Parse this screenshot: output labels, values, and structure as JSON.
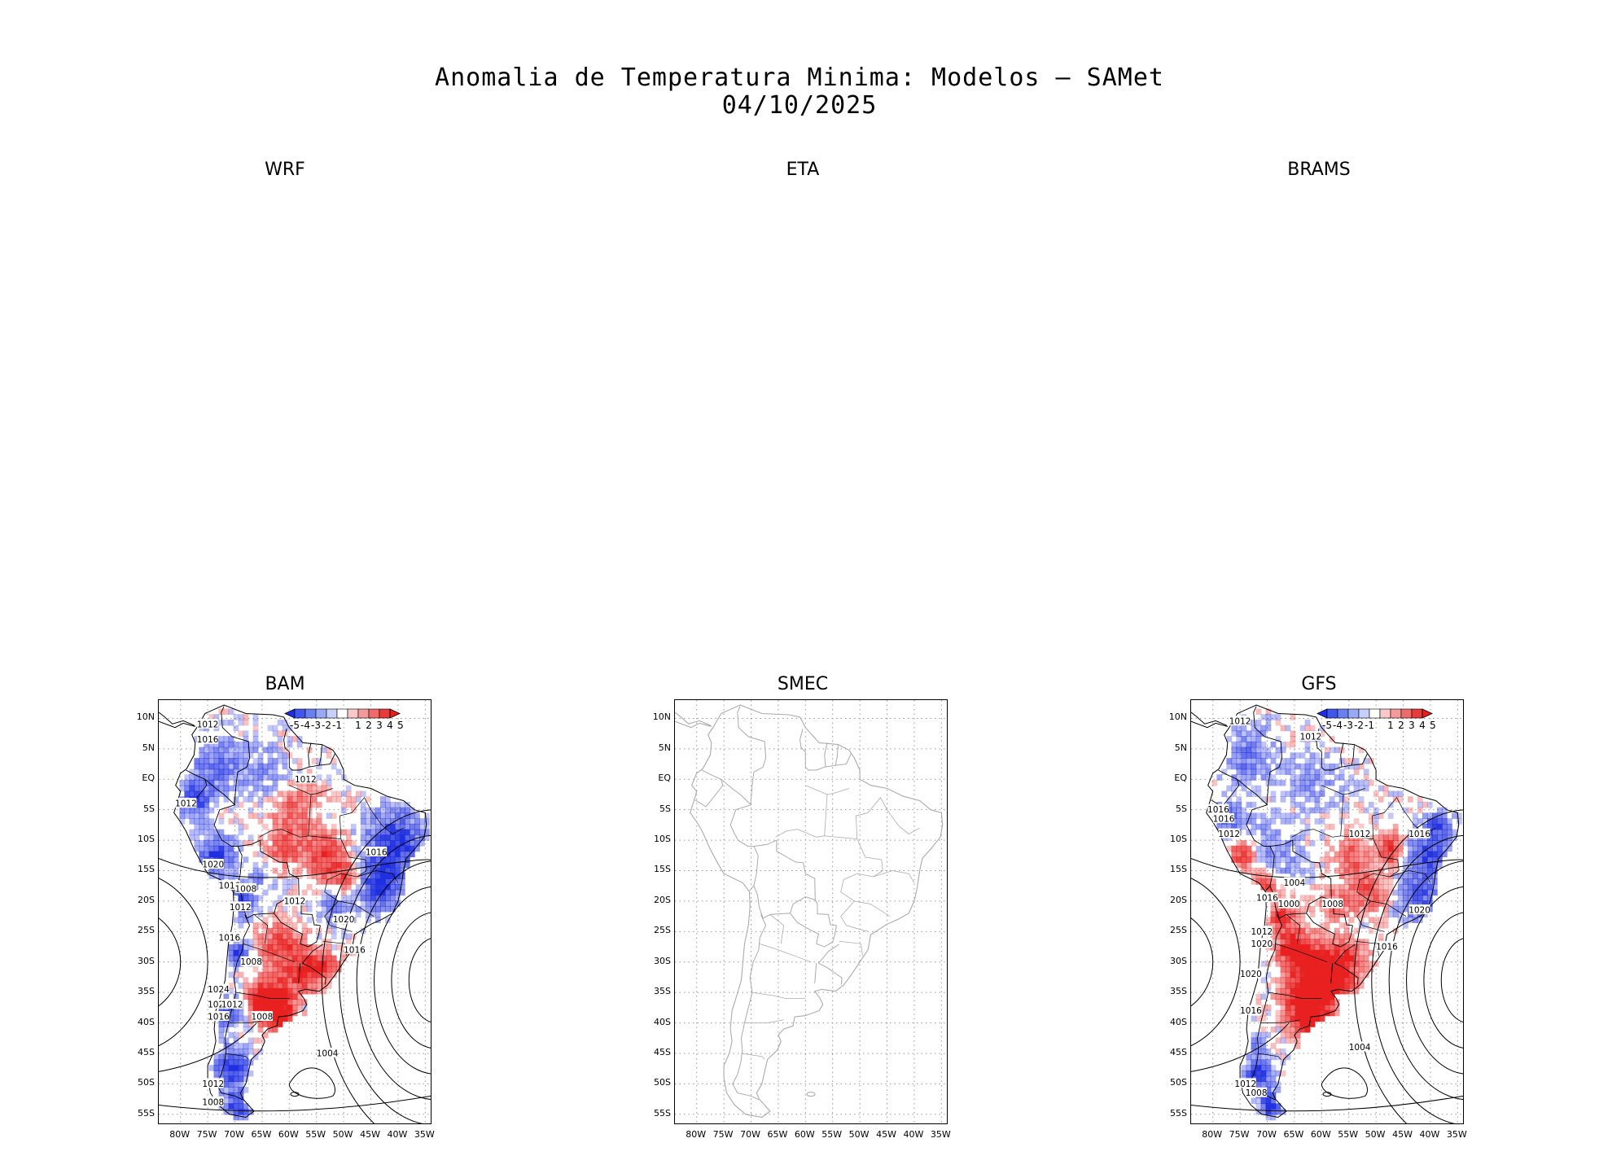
{
  "title": "Anomalia de Temperatura Minima: Modelos — SAMet",
  "date": "04/10/2025",
  "panels": [
    {
      "name": "WRF",
      "has_map": false
    },
    {
      "name": "ETA",
      "has_map": false
    },
    {
      "name": "BRAMS",
      "has_map": false
    },
    {
      "name": "BAM",
      "has_map": true,
      "colored": true
    },
    {
      "name": "SMEC",
      "has_map": true,
      "colored": false
    },
    {
      "name": "GFS",
      "has_map": true,
      "colored": true
    }
  ],
  "lat_ticks": [
    "10N",
    "5N",
    "EQ",
    "5S",
    "10S",
    "15S",
    "20S",
    "25S",
    "30S",
    "35S",
    "40S",
    "45S",
    "50S",
    "55S"
  ],
  "lon_ticks": [
    "80W",
    "75W",
    "70W",
    "65W",
    "60W",
    "55W",
    "50W",
    "45W",
    "40W",
    "35W"
  ],
  "colorbar_labels": [
    "-5",
    "-4",
    "-3",
    "-2",
    "-1",
    "1",
    "2",
    "3",
    "4",
    "5"
  ],
  "colorbar_colors": [
    "#1f2ee8",
    "#3e55ee",
    "#6a80f2",
    "#98a9f6",
    "#c6d0fa",
    "#ffffff",
    "#f9c8c8",
    "#f59a9a",
    "#ef6a6a",
    "#e83a3a",
    "#e81f1f"
  ],
  "bam_isobars": [
    "1012",
    "1016",
    "1012",
    "1012",
    "1020",
    "1016",
    "1008",
    "1012",
    "1012",
    "1016",
    "1016",
    "1020",
    "1016",
    "1008",
    "1024",
    "1020",
    "1012",
    "1016",
    "1008",
    "1004",
    "1012",
    "1008"
  ],
  "gfs_isobars": [
    "1012",
    "1012",
    "1016",
    "1016",
    "1012",
    "1012",
    "1016",
    "1004",
    "1016",
    "1000",
    "1008",
    "1020",
    "1012",
    "1020",
    "1016",
    "1020",
    "1016",
    "1004",
    "1012",
    "1008"
  ],
  "colors": {
    "positive": "#e82020",
    "negative": "#2030e0",
    "border": "#000000",
    "smec_border": "#aaaaaa",
    "grid": "#999999"
  }
}
